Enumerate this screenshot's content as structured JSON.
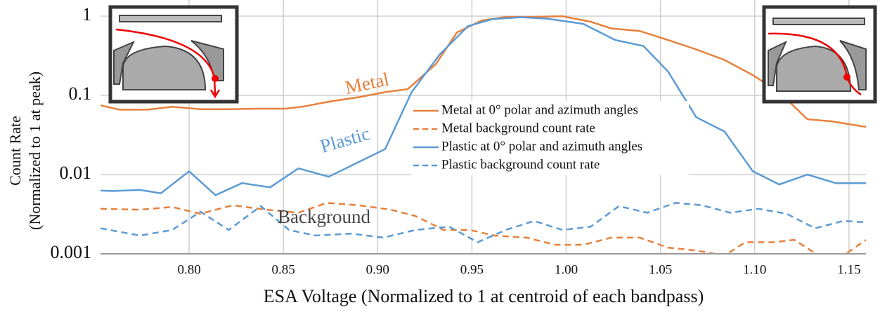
{
  "chart_data": {
    "type": "line",
    "x_label": "ESA Voltage (Normalized to 1 at centroid of each bandpass)",
    "y_label": [
      "Count Rate",
      "(Normalized to 1 at peak)"
    ],
    "annotations": [
      "Metal",
      "Plastic",
      "Background"
    ],
    "xlim": [
      0.753,
      1.159
    ],
    "ylim": [
      0.001,
      1.6
    ],
    "log_y": true,
    "grid": true,
    "xticks": [
      {
        "value": 0.8,
        "label": "0.80"
      },
      0.85,
      {
        "value": 0.9,
        "label": "0.90"
      },
      0.95,
      {
        "value": 1.0,
        "label": "1.00"
      },
      1.05,
      {
        "value": 1.1,
        "label": "1.10"
      },
      1.15
    ],
    "yticks": [
      0.001,
      0.01,
      0.1,
      1
    ],
    "series": [
      {
        "name": "Metal at 0° polar and azimuth angles",
        "color": "#e8803a",
        "dashed": false,
        "x": [
          0.753,
          0.763,
          0.778,
          0.791,
          0.806,
          0.821,
          0.836,
          0.851,
          0.86,
          0.875,
          0.89,
          0.904,
          0.916,
          0.931,
          0.942,
          0.955,
          0.968,
          0.983,
          0.998,
          1.013,
          1.024,
          1.039,
          1.054,
          1.069,
          1.084,
          1.099,
          1.113,
          1.128,
          1.141,
          1.159
        ],
        "values": [
          0.075,
          0.066,
          0.066,
          0.072,
          0.067,
          0.067,
          0.068,
          0.068,
          0.072,
          0.084,
          0.095,
          0.11,
          0.12,
          0.25,
          0.62,
          0.88,
          0.98,
          0.98,
          1.0,
          0.85,
          0.7,
          0.65,
          0.5,
          0.38,
          0.28,
          0.18,
          0.11,
          0.05,
          0.047,
          0.04
        ]
      },
      {
        "name": "Metal background count rate",
        "color": "#e8803a",
        "dashed": true,
        "x": [
          0.753,
          0.774,
          0.791,
          0.806,
          0.823,
          0.841,
          0.858,
          0.873,
          0.89,
          0.907,
          0.92,
          0.935,
          0.949,
          0.962,
          0.979,
          0.994,
          1.009,
          1.024,
          1.039,
          1.054,
          1.069,
          1.084,
          1.095,
          1.11,
          1.121,
          1.134,
          1.147,
          1.159
        ],
        "values": [
          0.0037,
          0.0036,
          0.0039,
          0.0032,
          0.0041,
          0.0036,
          0.0033,
          0.0044,
          0.0041,
          0.0036,
          0.003,
          0.002,
          0.002,
          0.0017,
          0.0016,
          0.0013,
          0.0013,
          0.0016,
          0.0016,
          0.0012,
          0.0011,
          0.00095,
          0.0014,
          0.0014,
          0.0015,
          0.00095,
          0.00095,
          0.0015
        ]
      },
      {
        "name": "Plastic at 0° polar and azimuth angles",
        "color": "#5b9bd5",
        "dashed": false,
        "x": [
          0.753,
          0.759,
          0.774,
          0.785,
          0.8,
          0.814,
          0.828,
          0.843,
          0.858,
          0.874,
          0.904,
          0.918,
          0.933,
          0.948,
          0.961,
          0.976,
          0.99,
          1.009,
          1.026,
          1.041,
          1.054,
          1.069,
          1.084,
          1.099,
          1.113,
          1.128,
          1.143,
          1.159
        ],
        "values": [
          0.0063,
          0.0062,
          0.0064,
          0.0058,
          0.011,
          0.0055,
          0.0078,
          0.0069,
          0.012,
          0.0094,
          0.021,
          0.11,
          0.33,
          0.75,
          0.92,
          0.97,
          0.93,
          0.8,
          0.5,
          0.42,
          0.2,
          0.053,
          0.035,
          0.011,
          0.0075,
          0.01,
          0.0078,
          0.0078
        ]
      },
      {
        "name": "Plastic background count rate",
        "color": "#5b9bd5",
        "dashed": true,
        "x": [
          0.753,
          0.774,
          0.791,
          0.806,
          0.821,
          0.838,
          0.853,
          0.867,
          0.886,
          0.903,
          0.92,
          0.938,
          0.953,
          0.968,
          0.983,
          0.998,
          1.013,
          1.028,
          1.043,
          1.058,
          1.072,
          1.087,
          1.102,
          1.117,
          1.132,
          1.147,
          1.159
        ],
        "values": [
          0.0021,
          0.0017,
          0.002,
          0.0034,
          0.002,
          0.004,
          0.002,
          0.0017,
          0.0018,
          0.0016,
          0.002,
          0.0022,
          0.0014,
          0.002,
          0.0026,
          0.002,
          0.0022,
          0.004,
          0.0033,
          0.0044,
          0.0041,
          0.0033,
          0.0037,
          0.0032,
          0.0021,
          0.0026,
          0.0025
        ]
      }
    ]
  }
}
